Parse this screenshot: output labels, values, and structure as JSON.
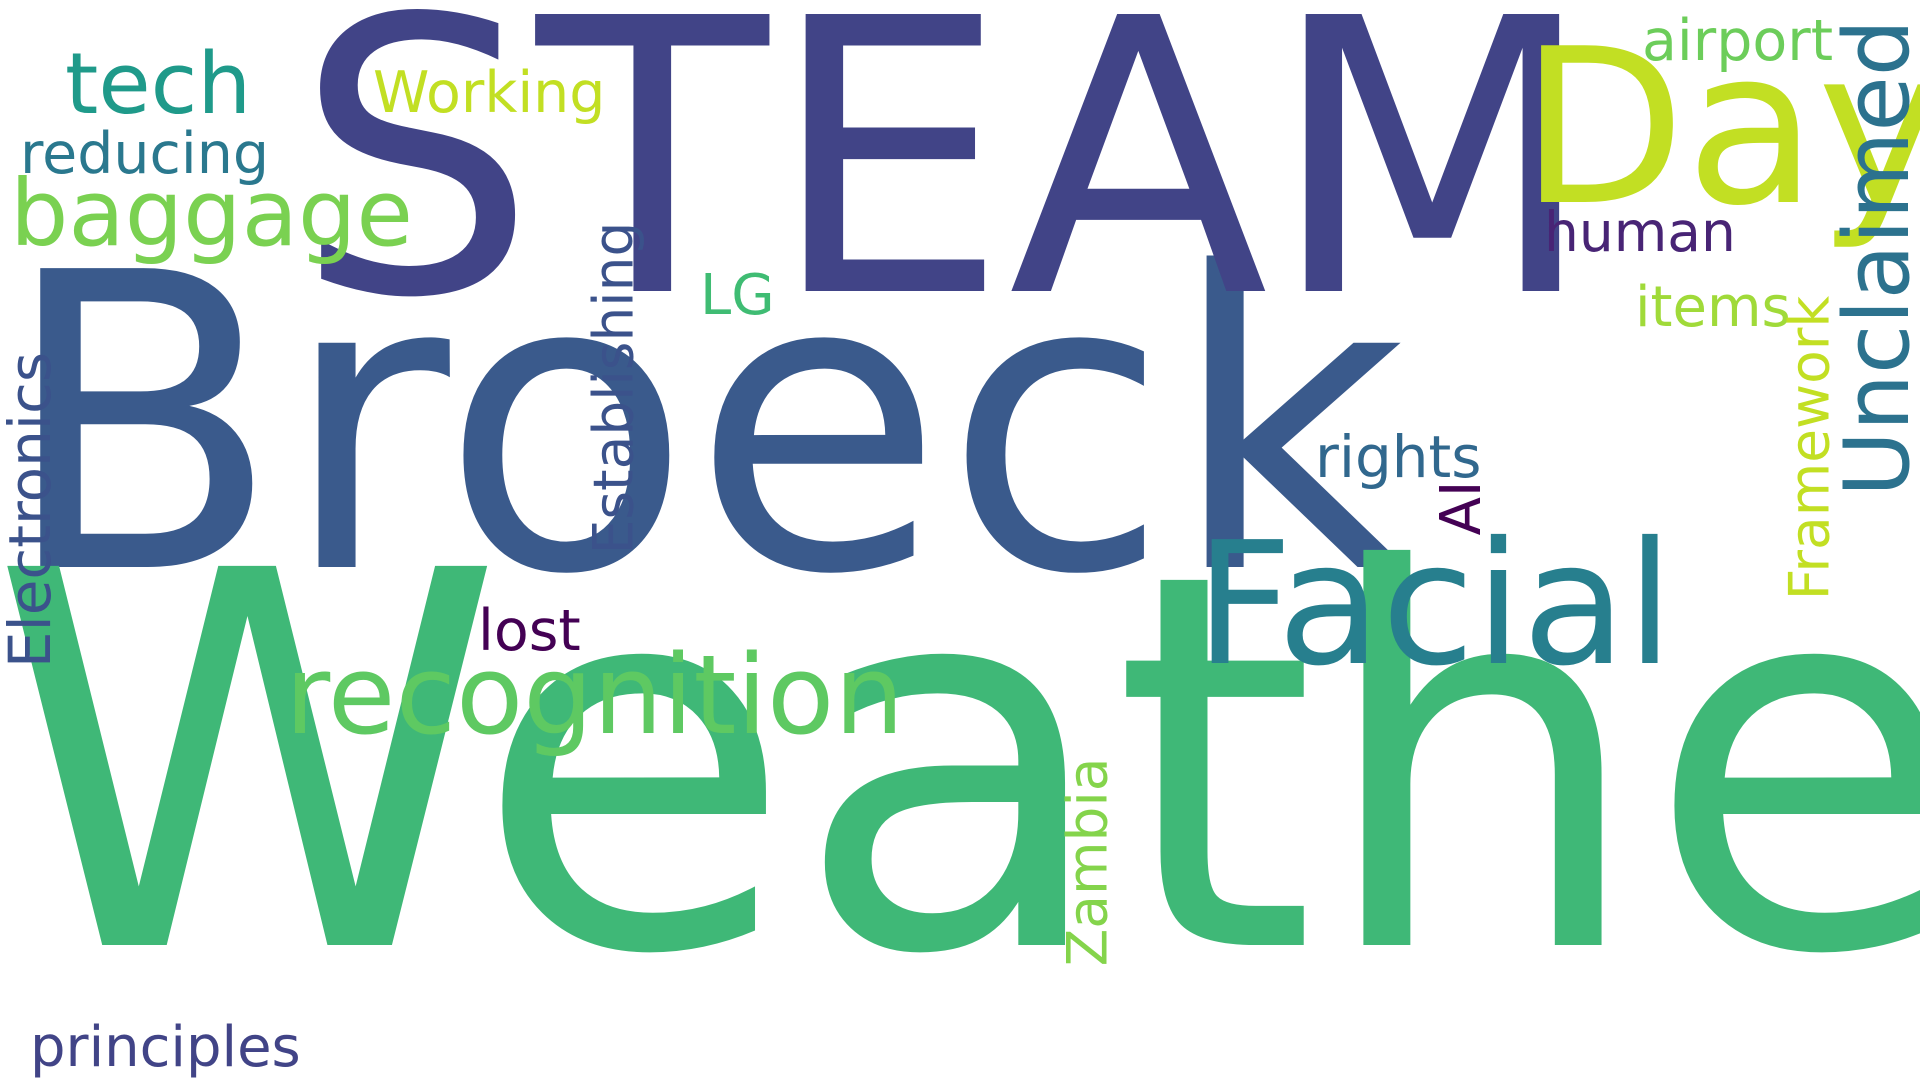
{
  "word_cloud": {
    "background": "#ffffff",
    "words": [
      {
        "text": "Broeck",
        "color": "#3a5a8c",
        "vertical": false
      },
      {
        "text": "Weather",
        "color": "#3fb877",
        "vertical": false
      },
      {
        "text": "STEAM",
        "color": "#414487",
        "vertical": false
      },
      {
        "text": "Day",
        "color": "#c2df23",
        "vertical": false
      },
      {
        "text": "Facial",
        "color": "#277f8e",
        "vertical": false
      },
      {
        "text": "recognition",
        "color": "#5ec962",
        "vertical": false
      },
      {
        "text": "baggage",
        "color": "#7ad151",
        "vertical": false
      },
      {
        "text": "tech",
        "color": "#1f9a8a",
        "vertical": false
      },
      {
        "text": "Working",
        "color": "#c2df23",
        "vertical": false
      },
      {
        "text": "reducing",
        "color": "#2a788e",
        "vertical": false
      },
      {
        "text": "airport",
        "color": "#6ccd5a",
        "vertical": false
      },
      {
        "text": "human",
        "color": "#482475",
        "vertical": false
      },
      {
        "text": "items",
        "color": "#a0da39",
        "vertical": false
      },
      {
        "text": "rights",
        "color": "#31688e",
        "vertical": false
      },
      {
        "text": "LG",
        "color": "#3fbc73",
        "vertical": false
      },
      {
        "text": "lost",
        "color": "#440154",
        "vertical": false
      },
      {
        "text": "principles",
        "color": "#414487",
        "vertical": false
      },
      {
        "text": "Unclaimed",
        "color": "#2c728e",
        "vertical": true
      },
      {
        "text": "Framework",
        "color": "#c2df23",
        "vertical": true
      },
      {
        "text": "Establishing",
        "color": "#3b528b",
        "vertical": true
      },
      {
        "text": "Electronics",
        "color": "#3b528b",
        "vertical": true
      },
      {
        "text": "Zambia",
        "color": "#84d44b",
        "vertical": true
      },
      {
        "text": "AI",
        "color": "#440154",
        "vertical": true
      }
    ]
  }
}
